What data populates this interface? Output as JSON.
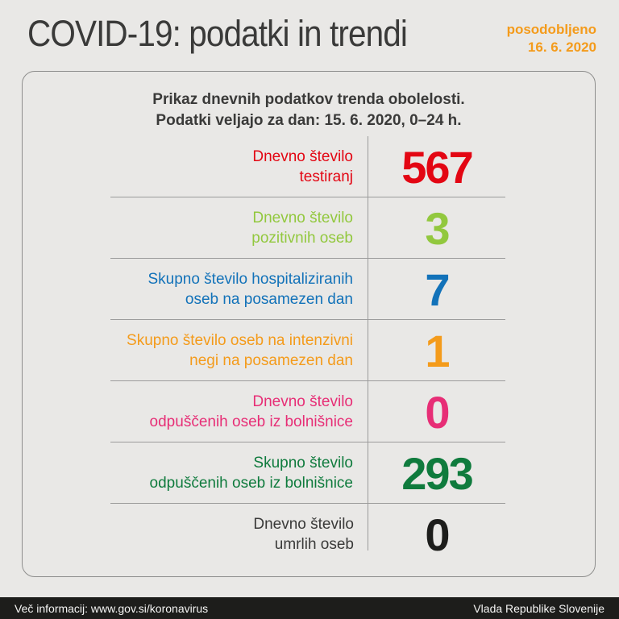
{
  "header": {
    "title": "COVID-19: podatki in trendi",
    "updated_label": "posodobljeno",
    "updated_date": "16. 6. 2020",
    "accent_color": "#f49b1b"
  },
  "card": {
    "intro_line1": "Prikaz dnevnih podatkov trenda obolelosti.",
    "intro_line2": "Podatki veljajo za dan: 15. 6. 2020, 0–24 h.",
    "rows": [
      {
        "label_lines": [
          "Dnevno število",
          "testiranj"
        ],
        "value": "567",
        "color": "#e30613"
      },
      {
        "label_lines": [
          "Dnevno število",
          "pozitivnih oseb"
        ],
        "value": "3",
        "color": "#92c83e"
      },
      {
        "label_lines": [
          "Skupno število hospitaliziranih",
          "oseb na posamezen dan"
        ],
        "value": "7",
        "color": "#1272b9"
      },
      {
        "label_lines": [
          "Skupno število oseb na intenzivni",
          "negi na posamezen dan"
        ],
        "value": "1",
        "color": "#f49b1b"
      },
      {
        "label_lines": [
          "Dnevno število",
          "odpuščenih oseb iz bolnišnice"
        ],
        "value": "0",
        "color": "#e72e76"
      },
      {
        "label_lines": [
          "Skupno število",
          "odpuščenih oseb iz bolnišnice"
        ],
        "value": "293",
        "color": "#0f7b3d"
      },
      {
        "label_lines": [
          "Dnevno število",
          "umrlih oseb"
        ],
        "value": "0",
        "color": "#1d1d1b",
        "label_color": "#3a3a39"
      }
    ],
    "divider_color": "#9b9b9b"
  },
  "footer": {
    "left_text": "Več informacij: www.gov.si/koronavirus",
    "right_text": "Vlada Republike Slovenije"
  },
  "chart_data": {
    "type": "table",
    "title": "COVID-19: podatki in trendi",
    "subtitle": "Prikaz dnevnih podatkov trenda obolelosti. Podatki veljajo za dan: 15. 6. 2020, 0–24 h.",
    "updated": "16. 6. 2020",
    "categories": [
      "Dnevno število testiranj",
      "Dnevno število pozitivnih oseb",
      "Skupno število hospitaliziranih oseb na posamezen dan",
      "Skupno število oseb na intenzivni negi na posamezen dan",
      "Dnevno število odpuščenih oseb iz bolnišnice",
      "Skupno število odpuščenih oseb iz bolnišnice",
      "Dnevno število umrlih oseb"
    ],
    "values": [
      567,
      3,
      7,
      1,
      0,
      293,
      0
    ],
    "colors": [
      "#e30613",
      "#92c83e",
      "#1272b9",
      "#f49b1b",
      "#e72e76",
      "#0f7b3d",
      "#1d1d1b"
    ],
    "legend_position": "none",
    "grid": false
  }
}
